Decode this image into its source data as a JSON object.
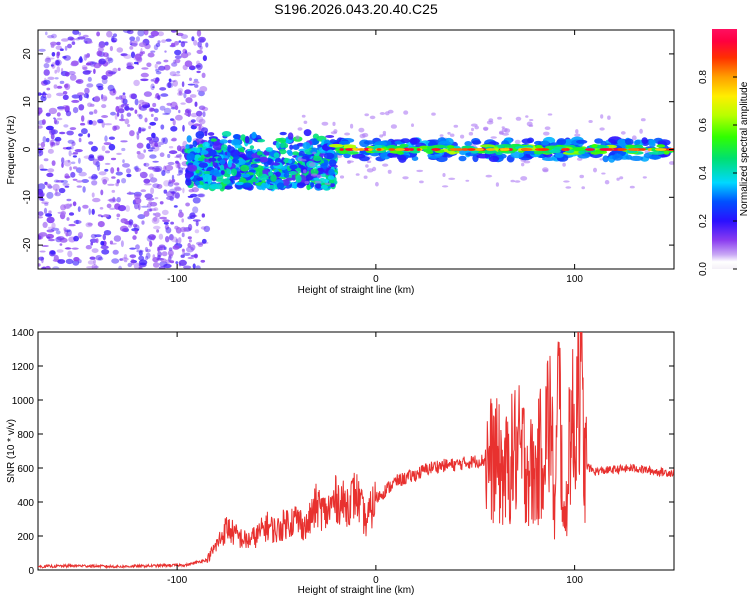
{
  "title": "S196.2026.043.20.40.C25",
  "chart_data": [
    {
      "type": "heatmap",
      "name": "spectrogram",
      "xlabel": "Height of straight line (km)",
      "ylabel": "Frequency (Hz)",
      "xlim": [
        -170,
        150
      ],
      "ylim": [
        -25,
        25
      ],
      "xticks": [
        -100,
        0,
        100
      ],
      "yticks": [
        -20,
        -10,
        0,
        10,
        20
      ],
      "description_bands": [
        {
          "x_range": [
            -170,
            -85
          ],
          "frequency_spread": [
            -25,
            25
          ],
          "amplitude": "low (0.2-0.4, scattered)"
        },
        {
          "x_range": [
            -95,
            -20
          ],
          "frequency_spread": [
            -8,
            5
          ],
          "amplitude": "medium (0.3-0.8)"
        },
        {
          "x_range": [
            -20,
            150
          ],
          "frequency_spread": [
            -3,
            3
          ],
          "amplitude": "high (0.6-1.0) near 0 Hz"
        }
      ],
      "colorbar": {
        "label": "Normalized spectral amplitude",
        "range": [
          0,
          1
        ],
        "ticks": [
          "0.0",
          "0.2",
          "0.4",
          "0.6",
          "0.8"
        ]
      }
    },
    {
      "type": "line",
      "name": "snr",
      "xlabel": "Height of straight line (km)",
      "ylabel": "SNR (10 * v/v)",
      "xlim": [
        -170,
        150
      ],
      "ylim": [
        0,
        1400
      ],
      "xticks": [
        -100,
        0,
        100
      ],
      "yticks": [
        0,
        200,
        400,
        600,
        800,
        1000,
        1200,
        1400
      ],
      "color": "#e8312f",
      "series": [
        {
          "name": "SNR",
          "x": [
            -170,
            -150,
            -130,
            -110,
            -95,
            -85,
            -80,
            -75,
            -70,
            -65,
            -60,
            -55,
            -50,
            -45,
            -40,
            -35,
            -30,
            -25,
            -20,
            -15,
            -10,
            -5,
            0,
            5,
            10,
            15,
            20,
            25,
            30,
            40,
            50,
            60,
            65,
            70,
            75,
            80,
            85,
            88,
            90,
            92,
            95,
            98,
            100,
            102,
            105,
            110,
            120,
            130,
            140,
            150
          ],
          "y": [
            20,
            25,
            20,
            25,
            30,
            60,
            150,
            250,
            200,
            170,
            200,
            260,
            230,
            280,
            300,
            250,
            380,
            330,
            420,
            380,
            450,
            280,
            420,
            470,
            520,
            540,
            560,
            590,
            610,
            620,
            640,
            650,
            560,
            700,
            660,
            530,
            800,
            900,
            300,
            1100,
            200,
            950,
            700,
            1400,
            620,
            580,
            590,
            600,
            580,
            570
          ]
        }
      ]
    }
  ]
}
